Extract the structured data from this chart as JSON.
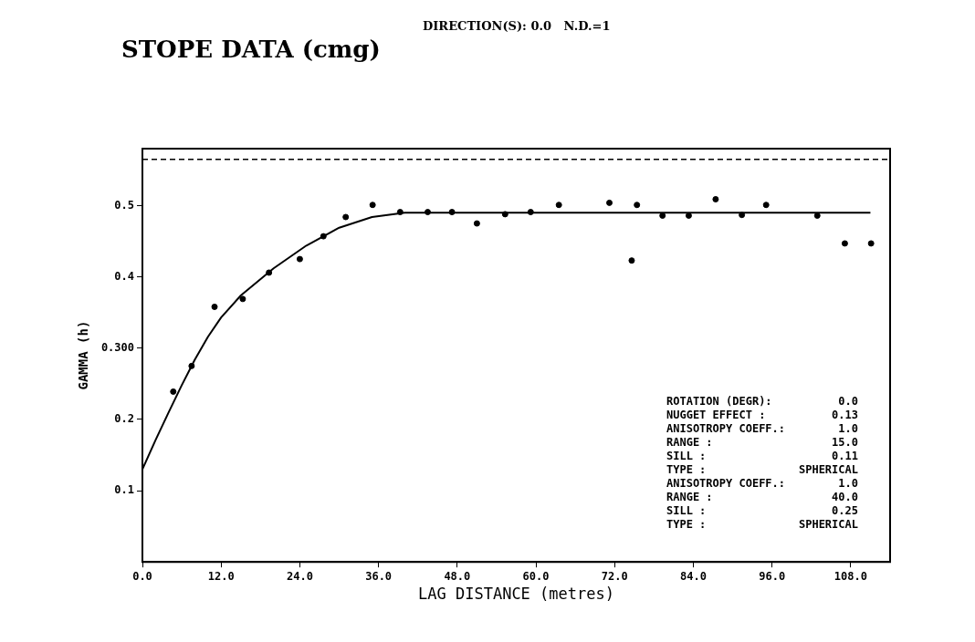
{
  "chart_data": {
    "type": "scatter",
    "title": "STOPE DATA (cmg)",
    "subtitle": "DIRECTION(S): 0.0   N.D.=1",
    "xlabel": "LAG DISTANCE (metres)",
    "ylabel": "GAMMA (h)",
    "xlim": [
      0,
      114
    ],
    "xticks": [
      {
        "value": 0,
        "label": "0.0"
      },
      {
        "value": 12,
        "label": "12.0"
      },
      {
        "value": 24,
        "label": "24.0"
      },
      {
        "value": 36,
        "label": "36.0"
      },
      {
        "value": 48,
        "label": "48.0"
      },
      {
        "value": 60,
        "label": "60.0"
      },
      {
        "value": 72,
        "label": "72.0"
      },
      {
        "value": 84,
        "label": "84.0"
      },
      {
        "value": 96,
        "label": "96.0"
      },
      {
        "value": 108,
        "label": "108.0"
      }
    ],
    "ylim": [
      0,
      0.58
    ],
    "yticks": [
      {
        "value": 0.1,
        "label": "0.1"
      },
      {
        "value": 0.2,
        "label": "0.2"
      },
      {
        "value": 0.3,
        "label": "0.300"
      },
      {
        "value": 0.4,
        "label": "0.4"
      },
      {
        "value": 0.5,
        "label": "0.5"
      }
    ],
    "grid": false,
    "legend": false,
    "series": [
      {
        "color": "#000000",
        "marker": "circle",
        "x": [
          4.7,
          7.5,
          11.0,
          15.3,
          19.3,
          24.0,
          27.6,
          31.0,
          35.1,
          39.3,
          43.5,
          47.2,
          51.0,
          55.3,
          59.2,
          63.5,
          71.2,
          74.6,
          75.4,
          79.3,
          83.3,
          87.4,
          91.4,
          95.1,
          102.9,
          107.1,
          111.1
        ],
        "values": [
          0.239,
          0.275,
          0.358,
          0.369,
          0.406,
          0.425,
          0.457,
          0.484,
          0.501,
          0.491,
          0.491,
          0.491,
          0.475,
          0.488,
          0.491,
          0.501,
          0.504,
          0.423,
          0.501,
          0.486,
          0.486,
          0.509,
          0.487,
          0.501,
          0.486,
          0.447,
          0.447
        ]
      },
      {
        "type": "line",
        "color": "#000000",
        "marker": "none",
        "line_style": "solid",
        "x": [
          0,
          2,
          4,
          6,
          8,
          10,
          12,
          15,
          20,
          25,
          30,
          35,
          40,
          111
        ],
        "values": [
          0.13,
          0.171,
          0.21,
          0.248,
          0.284,
          0.316,
          0.343,
          0.374,
          0.412,
          0.444,
          0.469,
          0.484,
          0.49,
          0.49
        ]
      }
    ],
    "ref_lines": [
      {
        "axis": "y",
        "value": 0.565,
        "color": "#000000",
        "line_style": "dashed"
      }
    ],
    "annotations": [
      "ROTATION (DEGR): 0.0",
      "NUGGET EFFECT : 0.13",
      "ANISOTROPY COEFF.: 1.0",
      "RANGE : 15.0",
      "SILL : 0.11",
      "TYPE : SPHERICAL",
      "ANISOTROPY COEFF.: 1.0",
      "RANGE : 40.0",
      "SILL : 0.25",
      "TYPE : SPHERICAL"
    ]
  }
}
